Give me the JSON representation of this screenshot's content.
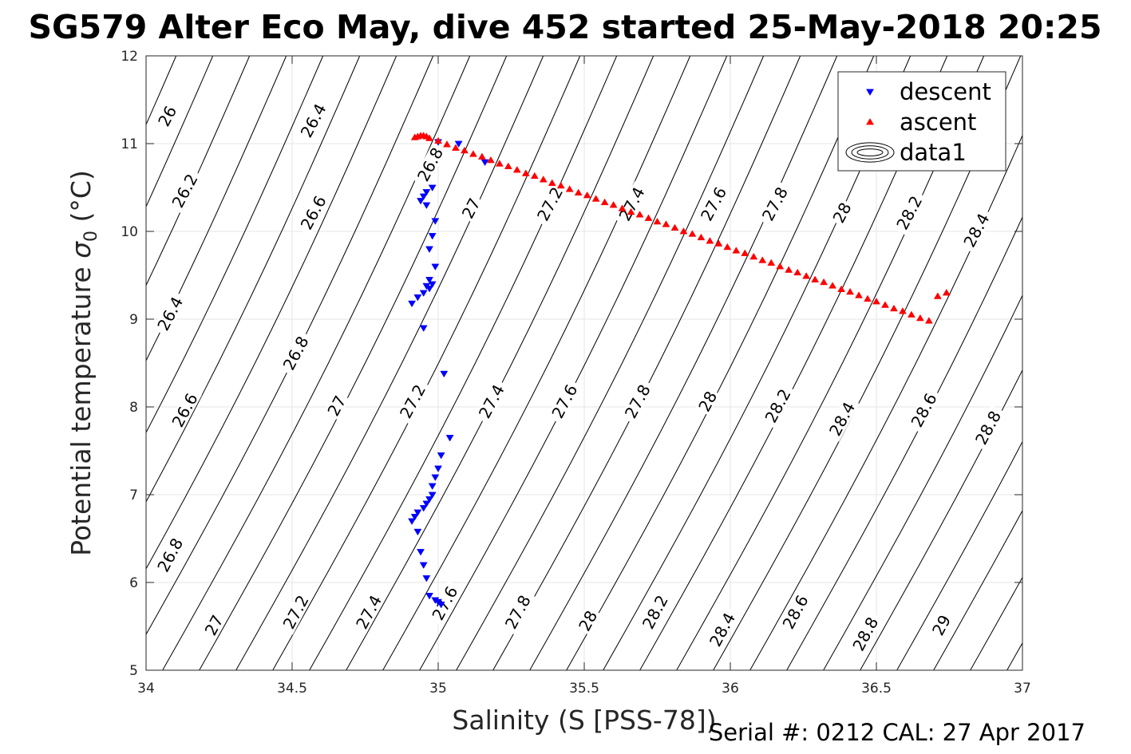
{
  "chart_data": {
    "type": "scatter",
    "title": "SG579 Alter Eco May, dive 452 started 25-May-2018 20:25",
    "xlabel": "Salinity (S [PSS-78])",
    "ylabel": "Potential temperature",
    "ylabel_symbol": "σ",
    "ylabel_subscript": "0",
    "ylabel_unit": " (°C)",
    "footer": "Serial #: 0212  CAL: 27 Apr 2017",
    "xlim": [
      34,
      37
    ],
    "ylim": [
      5,
      12
    ],
    "x_ticks": [
      34,
      34.5,
      35,
      35.5,
      36,
      36.5,
      37
    ],
    "x_tick_labels": [
      "34",
      "34.5",
      "35",
      "35.5",
      "36",
      "36.5",
      "37"
    ],
    "y_ticks": [
      5,
      6,
      7,
      8,
      9,
      10,
      11,
      12
    ],
    "y_tick_labels": [
      "5",
      "6",
      "7",
      "8",
      "9",
      "10",
      "11",
      "12"
    ],
    "grid": true,
    "legend_position": "top-right",
    "legend": [
      {
        "label": "descent",
        "marker": "triangle-down",
        "color": "#0000ff"
      },
      {
        "label": "ascent",
        "marker": "triangle-up",
        "color": "#ff0000"
      },
      {
        "label": "data1",
        "marker": "contour",
        "color": "#000000"
      }
    ],
    "contour_density_labels": [
      {
        "text": "26",
        "x": 34.08,
        "y": 11.3
      },
      {
        "text": "26.2",
        "x": 34.14,
        "y": 10.45
      },
      {
        "text": "26.4",
        "x": 34.58,
        "y": 11.25
      },
      {
        "text": "26.4",
        "x": 34.09,
        "y": 9.05
      },
      {
        "text": "26.6",
        "x": 34.58,
        "y": 10.2
      },
      {
        "text": "26.6",
        "x": 34.14,
        "y": 7.95
      },
      {
        "text": "26.8",
        "x": 34.98,
        "y": 10.75
      },
      {
        "text": "26.8",
        "x": 34.52,
        "y": 8.6
      },
      {
        "text": "26.8",
        "x": 34.09,
        "y": 6.3
      },
      {
        "text": "27",
        "x": 35.12,
        "y": 10.25
      },
      {
        "text": "27",
        "x": 34.66,
        "y": 8.0
      },
      {
        "text": "27",
        "x": 34.24,
        "y": 5.5
      },
      {
        "text": "27.2",
        "x": 35.39,
        "y": 10.3
      },
      {
        "text": "27.2",
        "x": 34.92,
        "y": 8.05
      },
      {
        "text": "27.2",
        "x": 34.52,
        "y": 5.65
      },
      {
        "text": "27.4",
        "x": 35.67,
        "y": 10.3
      },
      {
        "text": "27.4",
        "x": 35.19,
        "y": 8.05
      },
      {
        "text": "27.4",
        "x": 34.77,
        "y": 5.65
      },
      {
        "text": "27.6",
        "x": 35.95,
        "y": 10.3
      },
      {
        "text": "27.6",
        "x": 35.44,
        "y": 8.05
      },
      {
        "text": "27.6",
        "x": 35.03,
        "y": 5.75
      },
      {
        "text": "27.8",
        "x": 36.16,
        "y": 10.3
      },
      {
        "text": "27.8",
        "x": 35.69,
        "y": 8.05
      },
      {
        "text": "27.8",
        "x": 35.28,
        "y": 5.65
      },
      {
        "text": "28",
        "x": 36.39,
        "y": 10.2
      },
      {
        "text": "28",
        "x": 35.93,
        "y": 8.05
      },
      {
        "text": "28",
        "x": 35.52,
        "y": 5.55
      },
      {
        "text": "28.2",
        "x": 36.62,
        "y": 10.2
      },
      {
        "text": "28.2",
        "x": 36.17,
        "y": 8.0
      },
      {
        "text": "28.2",
        "x": 35.75,
        "y": 5.65
      },
      {
        "text": "28.4",
        "x": 36.85,
        "y": 10.0
      },
      {
        "text": "28.4",
        "x": 36.39,
        "y": 7.85
      },
      {
        "text": "28.4",
        "x": 35.98,
        "y": 5.45
      },
      {
        "text": "28.6",
        "x": 36.67,
        "y": 7.95
      },
      {
        "text": "28.6",
        "x": 36.23,
        "y": 5.65
      },
      {
        "text": "28.8",
        "x": 36.89,
        "y": 7.75
      },
      {
        "text": "28.8",
        "x": 36.47,
        "y": 5.4
      },
      {
        "text": "29",
        "x": 36.73,
        "y": 5.5
      }
    ],
    "series": [
      {
        "name": "descent",
        "marker": "triangle-down",
        "color": "#0000ff",
        "x": [
          35.0,
          35.07,
          35.16,
          34.98,
          34.96,
          34.95,
          34.94,
          34.96,
          34.99,
          34.98,
          34.97,
          34.99,
          34.97,
          34.96,
          34.98,
          34.97,
          34.95,
          34.93,
          34.91,
          34.95,
          35.02,
          35.04,
          35.01,
          35.0,
          34.99,
          34.98,
          34.98,
          34.97,
          34.96,
          34.95,
          34.93,
          34.92,
          34.91,
          34.93,
          34.94,
          34.95,
          34.96,
          34.97,
          34.99,
          35.0,
          35.01
        ],
        "y": [
          11.02,
          11.0,
          10.79,
          10.5,
          10.45,
          10.4,
          10.35,
          10.3,
          10.12,
          9.95,
          9.8,
          9.6,
          9.45,
          9.38,
          9.4,
          9.35,
          9.3,
          9.25,
          9.18,
          8.9,
          8.38,
          7.65,
          7.45,
          7.3,
          7.2,
          7.1,
          7.0,
          6.95,
          6.9,
          6.85,
          6.8,
          6.75,
          6.7,
          6.58,
          6.35,
          6.2,
          6.05,
          5.85,
          5.8,
          5.78,
          5.75
        ]
      },
      {
        "name": "ascent",
        "marker": "triangle-up",
        "color": "#ff0000",
        "x": [
          34.92,
          34.93,
          34.94,
          34.95,
          34.96,
          34.97,
          35.0,
          35.03,
          35.06,
          35.09,
          35.12,
          35.15,
          35.18,
          35.21,
          35.24,
          35.27,
          35.3,
          35.33,
          35.36,
          35.39,
          35.42,
          35.45,
          35.48,
          35.51,
          35.54,
          35.57,
          35.6,
          35.63,
          35.66,
          35.69,
          35.72,
          35.75,
          35.78,
          35.81,
          35.84,
          35.87,
          35.9,
          35.93,
          35.96,
          35.99,
          36.02,
          36.05,
          36.08,
          36.11,
          36.14,
          36.17,
          36.2,
          36.23,
          36.26,
          36.29,
          36.32,
          36.35,
          36.38,
          36.41,
          36.44,
          36.47,
          36.5,
          36.53,
          36.56,
          36.59,
          36.62,
          36.65,
          36.68,
          36.71,
          36.74
        ],
        "y": [
          11.07,
          11.08,
          11.09,
          11.09,
          11.08,
          11.06,
          11.03,
          10.99,
          10.95,
          10.92,
          10.88,
          10.85,
          10.81,
          10.77,
          10.74,
          10.7,
          10.66,
          10.63,
          10.59,
          10.55,
          10.52,
          10.48,
          10.44,
          10.41,
          10.37,
          10.33,
          10.3,
          10.26,
          10.22,
          10.19,
          10.15,
          10.11,
          10.08,
          10.04,
          10.0,
          9.97,
          9.93,
          9.89,
          9.86,
          9.82,
          9.78,
          9.75,
          9.71,
          9.67,
          9.64,
          9.6,
          9.56,
          9.53,
          9.49,
          9.45,
          9.42,
          9.38,
          9.34,
          9.31,
          9.27,
          9.23,
          9.2,
          9.16,
          9.12,
          9.09,
          9.05,
          9.01,
          8.98,
          9.26,
          9.3
        ]
      }
    ]
  }
}
